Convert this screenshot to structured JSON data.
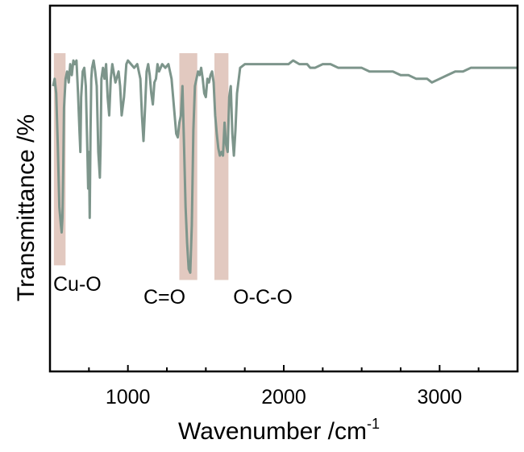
{
  "chart_data": {
    "type": "line",
    "xlabel": "Wavenumber /cm",
    "xlabel_sup": "-1",
    "ylabel": "Transmittance /%",
    "xlim": [
      500,
      3500
    ],
    "ylim": [
      0,
      100
    ],
    "xticks": [
      1000,
      2000,
      3000
    ],
    "tick_labels": [
      "1000",
      "2000",
      "3000"
    ],
    "y_ticks_shown": false,
    "grid": false,
    "line_color": "#7d958b",
    "band_color": "#e2c9c0",
    "bands": [
      {
        "label": "Cu-O",
        "x0": 525,
        "x1": 600,
        "y0": 29,
        "y1": 87
      },
      {
        "label": "C=O",
        "x0": 1330,
        "x1": 1445,
        "y0": 25,
        "y1": 87
      },
      {
        "label": "O-C-O",
        "x0": 1555,
        "x1": 1645,
        "y0": 25,
        "y1": 87
      }
    ],
    "series": [
      {
        "x": [
          520,
          530,
          540,
          550,
          560,
          570,
          575,
          580,
          585,
          590,
          600,
          610,
          620,
          630,
          640,
          650,
          660,
          670,
          680,
          690,
          695,
          700,
          710,
          720,
          730,
          740,
          745,
          750,
          755,
          760,
          765,
          770,
          780,
          790,
          800,
          810,
          820,
          825,
          830,
          840,
          850,
          860,
          870,
          880,
          890,
          900,
          920,
          940,
          950,
          960,
          975,
          990,
          1000,
          1020,
          1040,
          1060,
          1080,
          1090,
          1100,
          1110,
          1120,
          1130,
          1140,
          1150,
          1160,
          1170,
          1180,
          1190,
          1200,
          1220,
          1240,
          1260,
          1280,
          1300,
          1310,
          1320,
          1330,
          1340,
          1350,
          1360,
          1370,
          1380,
          1390,
          1400,
          1410,
          1420,
          1430,
          1440,
          1450,
          1460,
          1470,
          1480,
          1490,
          1500,
          1510,
          1520,
          1530,
          1540,
          1550,
          1560,
          1570,
          1580,
          1590,
          1600,
          1610,
          1620,
          1630,
          1640,
          1650,
          1660,
          1670,
          1680,
          1690,
          1700,
          1720,
          1750,
          1800,
          1850,
          1900,
          1950,
          1980,
          2000,
          2030,
          2060,
          2100,
          2130,
          2150,
          2170,
          2200,
          2250,
          2300,
          2350,
          2400,
          2450,
          2500,
          2550,
          2600,
          2650,
          2700,
          2750,
          2800,
          2850,
          2900,
          2920,
          2950,
          3000,
          3050,
          3100,
          3150,
          3200,
          3250,
          3300,
          3350,
          3400,
          3450,
          3500
        ],
        "y": [
          78,
          80,
          76,
          62,
          45,
          40,
          38,
          42,
          55,
          72,
          80,
          82,
          79,
          84,
          81,
          85,
          84,
          85,
          76,
          65,
          60,
          75,
          82,
          83,
          78,
          60,
          50,
          60,
          42,
          65,
          80,
          83,
          85,
          82,
          78,
          60,
          53,
          62,
          80,
          83,
          80,
          84,
          75,
          70,
          80,
          84,
          79,
          82,
          78,
          70,
          75,
          84,
          85,
          84,
          83,
          84,
          80,
          70,
          63,
          72,
          82,
          84,
          81,
          76,
          73,
          79,
          80,
          84,
          82,
          84,
          83,
          84,
          80,
          70,
          65,
          64,
          68,
          70,
          78,
          62,
          45,
          35,
          28,
          27,
          40,
          66,
          78,
          80,
          82,
          81,
          83,
          80,
          76,
          75,
          80,
          79,
          81,
          82,
          79,
          70,
          65,
          61,
          59,
          60,
          59,
          68,
          62,
          60,
          75,
          78,
          65,
          59,
          66,
          76,
          83,
          84,
          84,
          84,
          84,
          84,
          84,
          84,
          84,
          85,
          84,
          84,
          84,
          83,
          83,
          84,
          84,
          83,
          83,
          83,
          83,
          82,
          82,
          82,
          82,
          81,
          81,
          80,
          80,
          80,
          79,
          80,
          81,
          82,
          82,
          83,
          83,
          83,
          83,
          83,
          83,
          83
        ]
      }
    ]
  }
}
